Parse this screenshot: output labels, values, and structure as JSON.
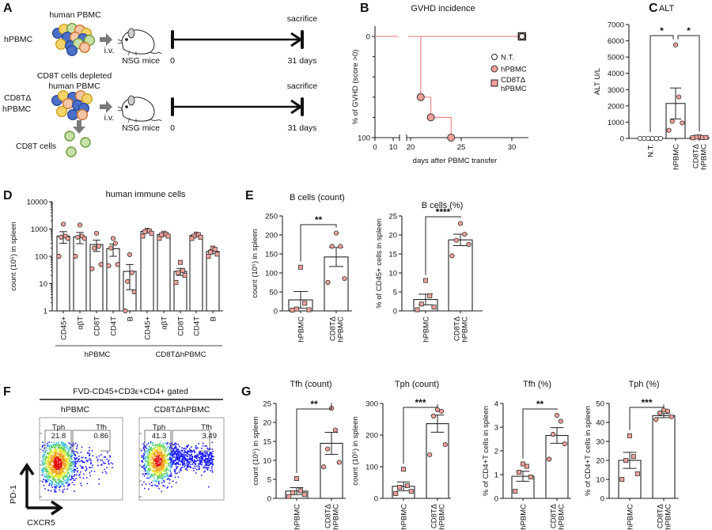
{
  "panel_labels": [
    "A",
    "B",
    "C",
    "D",
    "E",
    "F",
    "G"
  ],
  "colors": {
    "marker_fill": "#f2a09a",
    "marker_stroke": "#333333",
    "line": "#f08a86",
    "bar_fill": "#ffffff"
  },
  "panel_a": {
    "rows": [
      {
        "group_lines": [
          "hPBMC"
        ],
        "cells_label_lines": [
          "human PBMC"
        ],
        "route": "i.v.",
        "host": "NSG mice",
        "start": "0",
        "end_label": "sacrifice",
        "end": "31 days"
      },
      {
        "group_lines": [
          "CD8TΔ",
          "hPBMC"
        ],
        "cells_label_lines": [
          "CD8T cells depleted",
          "human PBMC"
        ],
        "route": "i.v.",
        "host": "NSG mice",
        "start": "0",
        "end_label": "sacrifice",
        "end": "31 days",
        "removed_label": "CD8T cells"
      }
    ],
    "icons": [
      "cell-cluster-icon",
      "mouse-icon",
      "arrow-right-icon",
      "arrow-down-icon"
    ]
  },
  "chart_data": [
    {
      "id": "B",
      "type": "line",
      "title": "GVHD incidence",
      "xlabel": "days after PBMC transfer",
      "ylabel": "% of GVHD (score >0)",
      "xticks": [
        0,
        10,
        20,
        25,
        30
      ],
      "yticks": [
        0,
        100
      ],
      "ylim": [
        0,
        100
      ],
      "y_reversed": true,
      "x_axis_break": [
        10,
        20
      ],
      "legend_placement": "right",
      "series": [
        {
          "name": "N.T.",
          "x": [
            0,
            31
          ],
          "y": [
            0,
            0
          ],
          "marker": "circle-open"
        },
        {
          "name": "hPBMC",
          "x": [
            0,
            21,
            22,
            24
          ],
          "y": [
            0,
            60,
            80,
            100
          ],
          "marker": "circle",
          "step": true
        },
        {
          "name": "CD8TΔ hPBMC",
          "x": [
            0,
            31
          ],
          "y": [
            0,
            0
          ],
          "marker": "square"
        }
      ]
    },
    {
      "id": "C",
      "type": "bar",
      "title": "ALT",
      "ylabel": "ALT U/L",
      "ylim": [
        0,
        7000
      ],
      "yticks": [
        0,
        1000,
        2000,
        3000,
        4000,
        5000,
        6000,
        7000
      ],
      "categories": [
        "N.T.",
        "hPBMC",
        "CD8TΔ hPBMC"
      ],
      "means": [
        0,
        2150,
        60
      ],
      "sem": [
        0,
        950,
        15
      ],
      "points": [
        [
          0,
          0,
          0,
          0,
          0,
          0
        ],
        [
          5750,
          2550,
          1050,
          950,
          500
        ],
        [
          100,
          50,
          80,
          60,
          40
        ]
      ],
      "markers": [
        "circle-open",
        "circle",
        "square"
      ],
      "significance": [
        {
          "pair": [
            0,
            1
          ],
          "label": "*"
        },
        {
          "pair": [
            1,
            2
          ],
          "label": "*"
        }
      ]
    },
    {
      "id": "D",
      "type": "bar",
      "title": "human immune cells",
      "ylabel": "count (10⁵) in spleen",
      "yscale": "log",
      "ylim": [
        1,
        10000
      ],
      "yticks": [
        1,
        10,
        100,
        1000,
        10000
      ],
      "categories": [
        "CD45+",
        "αβT",
        "CD8T",
        "CD4T",
        "B",
        "CD45+",
        "αβT",
        "CD8T",
        "CD4T",
        "B"
      ],
      "groups": [
        {
          "label": "hPBMC",
          "range": [
            0,
            4
          ]
        },
        {
          "label": "CD8TΔhPBMC",
          "range": [
            5,
            9
          ]
        }
      ],
      "means": [
        550,
        520,
        270,
        190,
        28,
        820,
        630,
        28,
        580,
        150
      ],
      "sem": [
        250,
        230,
        120,
        90,
        22,
        80,
        60,
        8,
        60,
        25
      ],
      "points": [
        [
          1500,
          550,
          500,
          450,
          100
        ],
        [
          1400,
          550,
          500,
          450,
          100
        ],
        [
          700,
          230,
          200,
          50,
          35
        ],
        [
          450,
          300,
          200,
          50,
          45
        ],
        [
          115,
          25,
          12,
          5,
          1
        ],
        [
          900,
          850,
          800,
          700,
          550
        ],
        [
          700,
          650,
          600,
          550,
          450
        ],
        [
          60,
          30,
          25,
          20,
          11
        ],
        [
          650,
          620,
          550,
          500,
          450
        ],
        [
          200,
          180,
          140,
          120,
          100
        ]
      ],
      "markers": [
        "circle",
        "circle",
        "circle",
        "circle",
        "circle",
        "square",
        "square",
        "square",
        "square",
        "square"
      ]
    },
    {
      "id": "E1",
      "type": "bar",
      "title": "B cells (count)",
      "ylabel": "count (10⁵) in spleen",
      "ylim": [
        0,
        250
      ],
      "yticks": [
        0,
        50,
        100,
        150,
        200,
        250
      ],
      "categories": [
        "hPBMC",
        "CD8TΔ hPBMC"
      ],
      "means": [
        29,
        142
      ],
      "sem": [
        22,
        25
      ],
      "points": [
        [
          115,
          20,
          5,
          3,
          2
        ],
        [
          205,
          170,
          170,
          85,
          75
        ]
      ],
      "markers": [
        "square",
        "circle"
      ],
      "significance": [
        {
          "pair": [
            0,
            1
          ],
          "label": "**"
        }
      ]
    },
    {
      "id": "E2",
      "type": "bar",
      "title": "B cells (%)",
      "ylabel": "% of CD45+ cells in spleen",
      "ylim": [
        0,
        25
      ],
      "yticks": [
        0,
        5,
        10,
        15,
        20,
        25
      ],
      "categories": [
        "hPBMC",
        "CD8TΔ hPBMC"
      ],
      "means": [
        3,
        18.7
      ],
      "sem": [
        1.4,
        1.5
      ],
      "points": [
        [
          8,
          4,
          1.8,
          1,
          0.3
        ],
        [
          23,
          20.2,
          18.6,
          17.5,
          14.5
        ]
      ],
      "markers": [
        "square",
        "circle"
      ],
      "significance": [
        {
          "pair": [
            0,
            1
          ],
          "label": "****"
        }
      ]
    },
    {
      "id": "G1",
      "type": "bar",
      "title": "Tfh (count)",
      "ylabel": "count (10⁵) in spleen",
      "ylim": [
        0,
        25
      ],
      "yticks": [
        0,
        5,
        10,
        15,
        20,
        25
      ],
      "categories": [
        "hPBMC",
        "CD8TΔ hPBMC"
      ],
      "means": [
        1.9,
        14.5
      ],
      "sem": [
        0.9,
        2.9
      ],
      "points": [
        [
          5.2,
          2,
          1.5,
          1,
          0.5
        ],
        [
          23.7,
          18,
          13,
          9.5,
          8.3
        ]
      ],
      "markers": [
        "square",
        "circle"
      ],
      "significance": [
        {
          "pair": [
            0,
            1
          ],
          "label": "**"
        }
      ]
    },
    {
      "id": "G2",
      "type": "bar",
      "title": "Tph (count)",
      "ylabel": "count (10⁵) in spleen",
      "ylim": [
        0,
        300
      ],
      "yticks": [
        0,
        100,
        200,
        300
      ],
      "categories": [
        "hPBMC",
        "CD8TΔ hPBMC"
      ],
      "means": [
        38,
        236
      ],
      "sem": [
        14,
        27
      ],
      "points": [
        [
          92,
          40,
          35,
          22,
          15
        ],
        [
          280,
          275,
          260,
          170,
          138
        ]
      ],
      "markers": [
        "square",
        "circle"
      ],
      "significance": [
        {
          "pair": [
            0,
            1
          ],
          "label": "***"
        }
      ]
    },
    {
      "id": "G3",
      "type": "bar",
      "title": "Tfh (%)",
      "ylabel": "% of CD4+T cells in spleen",
      "ylim": [
        0,
        4
      ],
      "yticks": [
        0,
        1,
        2,
        3,
        4
      ],
      "categories": [
        "hPBMC",
        "CD8TΔ hPBMC"
      ],
      "means": [
        0.93,
        2.65
      ],
      "sem": [
        0.21,
        0.33
      ],
      "points": [
        [
          1.45,
          1.35,
          1.1,
          0.9,
          0.3
        ],
        [
          3.5,
          3.25,
          2.7,
          2.3,
          1.65
        ]
      ],
      "markers": [
        "square",
        "circle"
      ],
      "significance": [
        {
          "pair": [
            0,
            1
          ],
          "label": "**"
        }
      ]
    },
    {
      "id": "G4",
      "type": "bar",
      "title": "Tph (%)",
      "ylabel": "% of CD4+T cells in spleen",
      "ylim": [
        0,
        50
      ],
      "yticks": [
        0,
        10,
        20,
        30,
        40,
        50
      ],
      "categories": [
        "hPBMC",
        "CD8TΔ hPBMC"
      ],
      "means": [
        20,
        43.6
      ],
      "sem": [
        4.2,
        1.1
      ],
      "points": [
        [
          33,
          22,
          20,
          13,
          10
        ],
        [
          46.5,
          46,
          45,
          43,
          41.5
        ]
      ],
      "markers": [
        "square",
        "circle"
      ],
      "significance": [
        {
          "pair": [
            0,
            1
          ],
          "label": "***"
        }
      ]
    }
  ],
  "panel_f": {
    "gate_header": "FVD-CD45+CD3ε+CD4+ gated",
    "x_axis": "CXCR5",
    "y_axis": "PD-1",
    "plots": [
      {
        "title": "hPBMC",
        "gates": [
          {
            "name": "Tph",
            "value": "21.8"
          },
          {
            "name": "Tfh",
            "value": "0.86"
          }
        ]
      },
      {
        "title": "CD8TΔhPBMC",
        "gates": [
          {
            "name": "Tph",
            "value": "41.3"
          },
          {
            "name": "Tfh",
            "value": "3.49"
          }
        ]
      }
    ]
  }
}
